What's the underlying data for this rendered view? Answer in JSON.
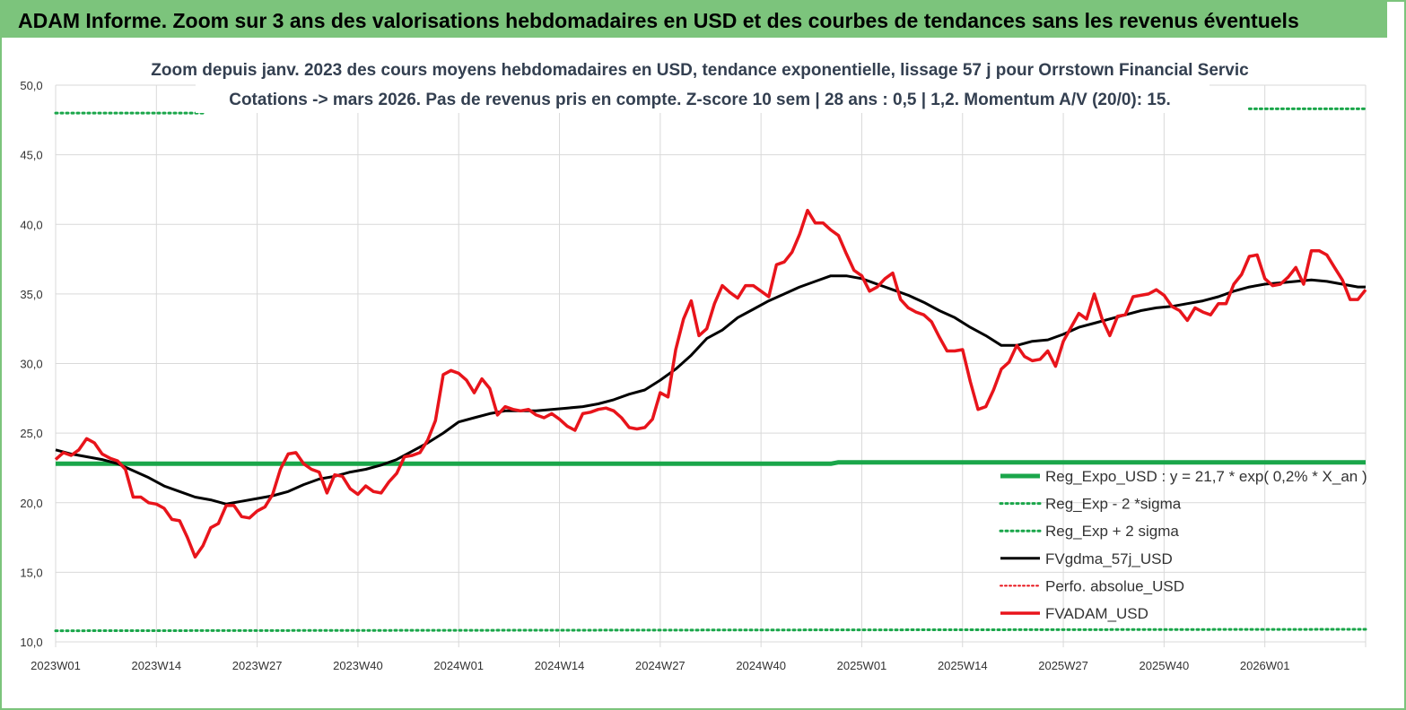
{
  "banner": {
    "text": "ADAM Informe. Zoom sur 3 ans des valorisations hebdomadaires en USD et des courbes de tendances sans les revenus éventuels"
  },
  "colors": {
    "banner_bg": "#7cc47c",
    "regression": "#1aa64a",
    "fvgdma": "#000000",
    "fvadam": "#e8141b",
    "perfo": "#e8141b"
  },
  "chart_data": {
    "type": "line",
    "title": "Zoom depuis janv. 2023 des cours moyens hebdomadaires en USD, tendance exponentielle, lissage 57 j pour Orrstown Financial Servic",
    "subtitle": "Cotations -> mars 2026. Pas de revenus pris en compte. Z-score 10 sem | 28 ans : 0,5 | 1,2. Momentum A/V (20/0): 15.",
    "xlabel": "",
    "ylabel": "",
    "ylim": [
      10,
      50
    ],
    "yticks": [
      "10,0",
      "15,0",
      "20,0",
      "25,0",
      "30,0",
      "35,0",
      "40,0",
      "45,0",
      "50,0"
    ],
    "xticks": [
      {
        "week": 0,
        "label": "2023W01"
      },
      {
        "week": 13,
        "label": "2023W14"
      },
      {
        "week": 26,
        "label": "2023W27"
      },
      {
        "week": 39,
        "label": "2023W40"
      },
      {
        "week": 52,
        "label": "2024W01"
      },
      {
        "week": 65,
        "label": "2024W14"
      },
      {
        "week": 78,
        "label": "2024W27"
      },
      {
        "week": 91,
        "label": "2024W40"
      },
      {
        "week": 104,
        "label": "2025W01"
      },
      {
        "week": 117,
        "label": "2025W14"
      },
      {
        "week": 130,
        "label": "2025W27"
      },
      {
        "week": 143,
        "label": "2025W40"
      },
      {
        "week": 156,
        "label": "2026W01"
      }
    ],
    "week_range": [
      0,
      169
    ],
    "grid": true,
    "legend_position": "bottom-right",
    "series": [
      {
        "name": "Reg_Expo_USD : y = 21,7 * exp( 0,2% *  X_an )",
        "style": "solid-thick",
        "points": [
          [
            0,
            22.8
          ],
          [
            100,
            22.8
          ],
          [
            101,
            22.9
          ],
          [
            169,
            22.9
          ]
        ]
      },
      {
        "name": "Reg_Exp - 2 *sigma",
        "style": "dotted",
        "points": [
          [
            0,
            10.8
          ],
          [
            169,
            10.9
          ]
        ]
      },
      {
        "name": "Reg_Exp + 2 sigma",
        "style": "dotted",
        "segments": [
          [
            [
              0,
              48.0
            ],
            [
              19,
              48.0
            ]
          ],
          [
            [
              154,
              48.3
            ],
            [
              169,
              48.3
            ]
          ]
        ]
      },
      {
        "name": "FVgdma_57j_USD",
        "style": "solid",
        "points": [
          [
            0,
            23.8
          ],
          [
            2,
            23.5
          ],
          [
            4,
            23.3
          ],
          [
            6,
            23.1
          ],
          [
            8,
            22.8
          ],
          [
            10,
            22.3
          ],
          [
            12,
            21.8
          ],
          [
            14,
            21.2
          ],
          [
            16,
            20.8
          ],
          [
            18,
            20.4
          ],
          [
            20,
            20.2
          ],
          [
            22,
            19.9
          ],
          [
            24,
            20.1
          ],
          [
            26,
            20.3
          ],
          [
            28,
            20.5
          ],
          [
            30,
            20.8
          ],
          [
            32,
            21.3
          ],
          [
            34,
            21.7
          ],
          [
            36,
            21.9
          ],
          [
            38,
            22.2
          ],
          [
            40,
            22.4
          ],
          [
            42,
            22.7
          ],
          [
            44,
            23.1
          ],
          [
            46,
            23.7
          ],
          [
            48,
            24.3
          ],
          [
            50,
            25.0
          ],
          [
            52,
            25.8
          ],
          [
            54,
            26.1
          ],
          [
            56,
            26.4
          ],
          [
            58,
            26.6
          ],
          [
            60,
            26.6
          ],
          [
            62,
            26.6
          ],
          [
            64,
            26.7
          ],
          [
            66,
            26.8
          ],
          [
            68,
            26.9
          ],
          [
            70,
            27.1
          ],
          [
            72,
            27.4
          ],
          [
            74,
            27.8
          ],
          [
            76,
            28.1
          ],
          [
            78,
            28.8
          ],
          [
            80,
            29.6
          ],
          [
            82,
            30.6
          ],
          [
            84,
            31.8
          ],
          [
            86,
            32.4
          ],
          [
            88,
            33.3
          ],
          [
            90,
            33.9
          ],
          [
            92,
            34.5
          ],
          [
            94,
            35.0
          ],
          [
            96,
            35.5
          ],
          [
            98,
            35.9
          ],
          [
            100,
            36.3
          ],
          [
            102,
            36.3
          ],
          [
            104,
            36.1
          ],
          [
            106,
            35.7
          ],
          [
            108,
            35.3
          ],
          [
            110,
            34.9
          ],
          [
            112,
            34.4
          ],
          [
            114,
            33.8
          ],
          [
            116,
            33.3
          ],
          [
            118,
            32.6
          ],
          [
            120,
            32.0
          ],
          [
            122,
            31.3
          ],
          [
            124,
            31.3
          ],
          [
            126,
            31.6
          ],
          [
            128,
            31.7
          ],
          [
            130,
            32.1
          ],
          [
            132,
            32.6
          ],
          [
            134,
            32.9
          ],
          [
            136,
            33.2
          ],
          [
            138,
            33.5
          ],
          [
            140,
            33.8
          ],
          [
            142,
            34.0
          ],
          [
            144,
            34.1
          ],
          [
            146,
            34.3
          ],
          [
            148,
            34.5
          ],
          [
            150,
            34.8
          ],
          [
            152,
            35.2
          ],
          [
            154,
            35.5
          ],
          [
            156,
            35.7
          ],
          [
            158,
            35.8
          ],
          [
            160,
            35.9
          ],
          [
            162,
            36.0
          ],
          [
            164,
            35.9
          ],
          [
            166,
            35.7
          ],
          [
            168,
            35.5
          ],
          [
            169,
            35.5
          ]
        ]
      },
      {
        "name": "Perfo. absolue_USD",
        "style": "dotted",
        "points": []
      },
      {
        "name": "FVADAM_USD",
        "style": "solid-thick",
        "points": [
          [
            0,
            23.1
          ],
          [
            1,
            23.6
          ],
          [
            2,
            23.4
          ],
          [
            3,
            23.8
          ],
          [
            4,
            24.6
          ],
          [
            5,
            24.3
          ],
          [
            6,
            23.5
          ],
          [
            7,
            23.2
          ],
          [
            8,
            23.0
          ],
          [
            9,
            22.4
          ],
          [
            10,
            20.4
          ],
          [
            11,
            20.4
          ],
          [
            12,
            20.0
          ],
          [
            13,
            19.9
          ],
          [
            14,
            19.6
          ],
          [
            15,
            18.8
          ],
          [
            16,
            18.7
          ],
          [
            17,
            17.5
          ],
          [
            18,
            16.1
          ],
          [
            19,
            16.9
          ],
          [
            20,
            18.2
          ],
          [
            21,
            18.5
          ],
          [
            22,
            19.8
          ],
          [
            23,
            19.8
          ],
          [
            24,
            19.0
          ],
          [
            25,
            18.9
          ],
          [
            26,
            19.4
          ],
          [
            27,
            19.7
          ],
          [
            28,
            20.6
          ],
          [
            29,
            22.4
          ],
          [
            30,
            23.5
          ],
          [
            31,
            23.6
          ],
          [
            32,
            22.8
          ],
          [
            33,
            22.4
          ],
          [
            34,
            22.2
          ],
          [
            35,
            20.7
          ],
          [
            36,
            22.0
          ],
          [
            37,
            21.9
          ],
          [
            38,
            21.0
          ],
          [
            39,
            20.6
          ],
          [
            40,
            21.2
          ],
          [
            41,
            20.8
          ],
          [
            42,
            20.7
          ],
          [
            43,
            21.5
          ],
          [
            44,
            22.1
          ],
          [
            45,
            23.3
          ],
          [
            46,
            23.4
          ],
          [
            47,
            23.6
          ],
          [
            48,
            24.5
          ],
          [
            49,
            25.9
          ],
          [
            50,
            29.2
          ],
          [
            51,
            29.5
          ],
          [
            52,
            29.3
          ],
          [
            53,
            28.8
          ],
          [
            54,
            27.9
          ],
          [
            55,
            28.9
          ],
          [
            56,
            28.2
          ],
          [
            57,
            26.3
          ],
          [
            58,
            26.9
          ],
          [
            59,
            26.7
          ],
          [
            60,
            26.6
          ],
          [
            61,
            26.7
          ],
          [
            62,
            26.3
          ],
          [
            63,
            26.1
          ],
          [
            64,
            26.4
          ],
          [
            65,
            26.0
          ],
          [
            66,
            25.5
          ],
          [
            67,
            25.2
          ],
          [
            68,
            26.4
          ],
          [
            69,
            26.5
          ],
          [
            70,
            26.7
          ],
          [
            71,
            26.8
          ],
          [
            72,
            26.6
          ],
          [
            73,
            26.1
          ],
          [
            74,
            25.4
          ],
          [
            75,
            25.3
          ],
          [
            76,
            25.4
          ],
          [
            77,
            26.0
          ],
          [
            78,
            27.9
          ],
          [
            79,
            27.6
          ],
          [
            80,
            31.0
          ],
          [
            81,
            33.2
          ],
          [
            82,
            34.5
          ],
          [
            83,
            32.0
          ],
          [
            84,
            32.5
          ],
          [
            85,
            34.3
          ],
          [
            86,
            35.6
          ],
          [
            87,
            35.1
          ],
          [
            88,
            34.7
          ],
          [
            89,
            35.6
          ],
          [
            90,
            35.6
          ],
          [
            91,
            35.2
          ],
          [
            92,
            34.8
          ],
          [
            93,
            37.1
          ],
          [
            94,
            37.3
          ],
          [
            95,
            38.0
          ],
          [
            96,
            39.3
          ],
          [
            97,
            41.0
          ],
          [
            98,
            40.1
          ],
          [
            99,
            40.1
          ],
          [
            100,
            39.6
          ],
          [
            101,
            39.2
          ],
          [
            102,
            37.9
          ],
          [
            103,
            36.7
          ],
          [
            104,
            36.3
          ],
          [
            105,
            35.2
          ],
          [
            106,
            35.5
          ],
          [
            107,
            36.1
          ],
          [
            108,
            36.5
          ],
          [
            109,
            34.6
          ],
          [
            110,
            34.0
          ],
          [
            111,
            33.7
          ],
          [
            112,
            33.5
          ],
          [
            113,
            33.0
          ],
          [
            114,
            31.9
          ],
          [
            115,
            30.9
          ],
          [
            116,
            30.9
          ],
          [
            117,
            31.0
          ],
          [
            118,
            28.7
          ],
          [
            119,
            26.7
          ],
          [
            120,
            26.9
          ],
          [
            121,
            28.1
          ],
          [
            122,
            29.6
          ],
          [
            123,
            30.1
          ],
          [
            124,
            31.3
          ],
          [
            125,
            30.5
          ],
          [
            126,
            30.2
          ],
          [
            127,
            30.3
          ],
          [
            128,
            30.9
          ],
          [
            129,
            29.8
          ],
          [
            130,
            31.6
          ],
          [
            131,
            32.6
          ],
          [
            132,
            33.6
          ],
          [
            133,
            33.2
          ],
          [
            134,
            35.0
          ],
          [
            135,
            33.2
          ],
          [
            136,
            32.0
          ],
          [
            137,
            33.4
          ],
          [
            138,
            33.5
          ],
          [
            139,
            34.8
          ],
          [
            140,
            34.9
          ],
          [
            141,
            35.0
          ],
          [
            142,
            35.3
          ],
          [
            143,
            34.9
          ],
          [
            144,
            34.1
          ],
          [
            145,
            33.8
          ],
          [
            146,
            33.1
          ],
          [
            147,
            34.0
          ],
          [
            148,
            33.7
          ],
          [
            149,
            33.5
          ],
          [
            150,
            34.3
          ],
          [
            151,
            34.3
          ],
          [
            152,
            35.7
          ],
          [
            153,
            36.4
          ],
          [
            154,
            37.7
          ],
          [
            155,
            37.8
          ],
          [
            156,
            36.1
          ],
          [
            157,
            35.6
          ],
          [
            158,
            35.7
          ],
          [
            159,
            36.2
          ],
          [
            160,
            36.9
          ],
          [
            161,
            35.7
          ],
          [
            162,
            38.1
          ],
          [
            163,
            38.1
          ],
          [
            164,
            37.8
          ],
          [
            165,
            36.9
          ],
          [
            166,
            36.0
          ],
          [
            167,
            34.6
          ],
          [
            168,
            34.6
          ],
          [
            169,
            35.3
          ]
        ]
      }
    ]
  }
}
